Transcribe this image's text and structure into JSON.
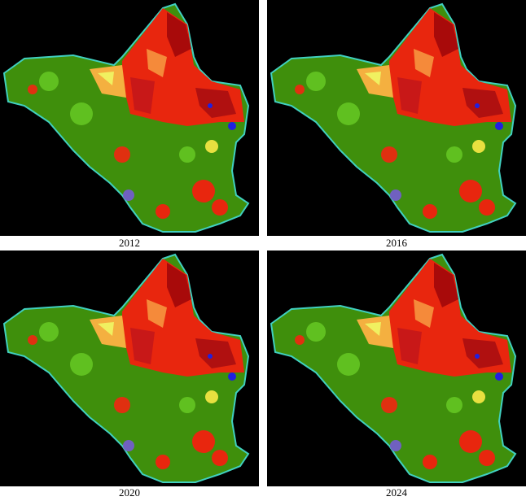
{
  "panels": [
    {
      "label": "2012"
    },
    {
      "label": "2016"
    },
    {
      "label": "2020"
    },
    {
      "label": "2024"
    }
  ]
}
